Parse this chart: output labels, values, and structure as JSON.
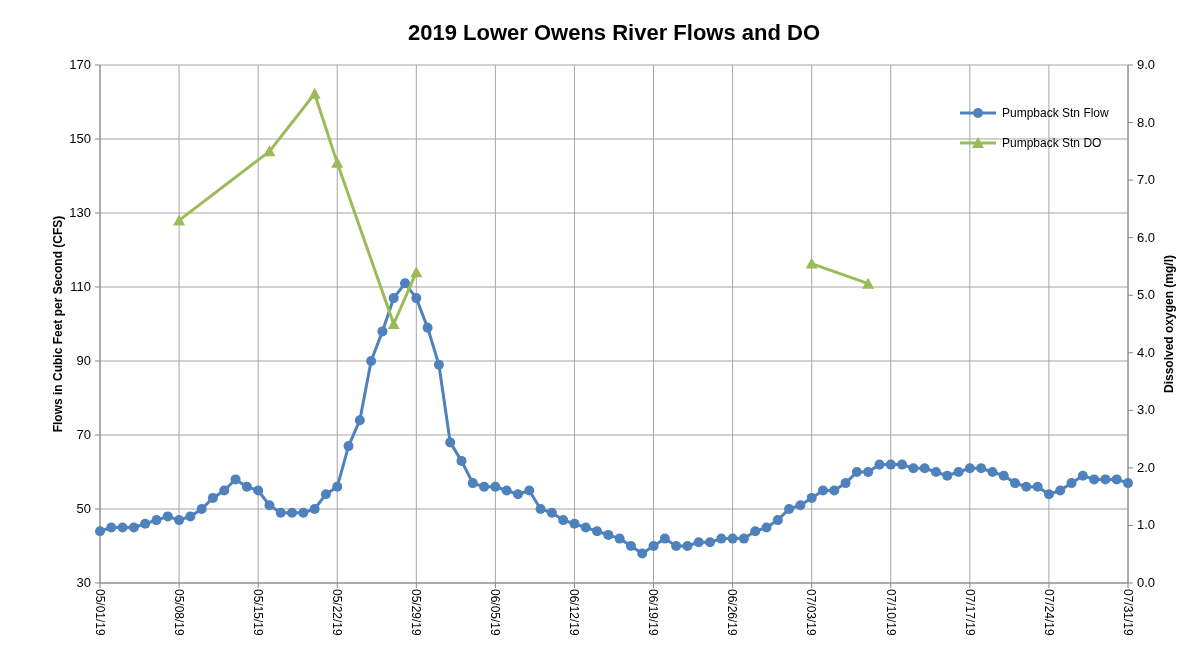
{
  "chart_data": {
    "type": "line",
    "title": "2019 Lower Owens River Flows and DO",
    "ylabel": "Flows in Cubic Feet per Second (CFS)",
    "y2label": "Dissolved oxygen (mg/l)",
    "xlim": [
      "2019-05-01",
      "2019-07-31"
    ],
    "xticks": [
      {
        "value": "2019-05-01",
        "label": "05/01/19"
      },
      {
        "value": "2019-05-08",
        "label": "05/08/19"
      },
      {
        "value": "2019-05-15",
        "label": "05/15/19"
      },
      {
        "value": "2019-05-22",
        "label": "05/22/19"
      },
      {
        "value": "2019-05-29",
        "label": "05/29/19"
      },
      {
        "value": "2019-06-05",
        "label": "06/05/19"
      },
      {
        "value": "2019-06-12",
        "label": "06/12/19"
      },
      {
        "value": "2019-06-19",
        "label": "06/19/19"
      },
      {
        "value": "2019-06-26",
        "label": "06/26/19"
      },
      {
        "value": "2019-07-03",
        "label": "07/03/19"
      },
      {
        "value": "2019-07-10",
        "label": "07/10/19"
      },
      {
        "value": "2019-07-17",
        "label": "07/17/19"
      },
      {
        "value": "2019-07-24",
        "label": "07/24/19"
      },
      {
        "value": "2019-07-31",
        "label": "07/31/19"
      }
    ],
    "ylim": [
      30,
      170
    ],
    "yticks": [
      30,
      50,
      70,
      90,
      110,
      130,
      150,
      170
    ],
    "y2lim": [
      0,
      9
    ],
    "y2ticks": [
      {
        "value": 0,
        "label": "0.0"
      },
      {
        "value": 1,
        "label": "1.0"
      },
      {
        "value": 2,
        "label": "2.0"
      },
      {
        "value": 3,
        "label": "3.0"
      },
      {
        "value": 4,
        "label": "4.0"
      },
      {
        "value": 5,
        "label": "5.0"
      },
      {
        "value": 6,
        "label": "6.0"
      },
      {
        "value": 7,
        "label": "7.0"
      },
      {
        "value": 8,
        "label": "8.0"
      },
      {
        "value": 9,
        "label": "9.0"
      }
    ],
    "grid": true,
    "legend": "top right",
    "line_style": "solid",
    "series": [
      {
        "name": "Pumpback Stn Flow",
        "color": "#4f81bd",
        "marker": "circle",
        "x": [
          "2019-05-01",
          "2019-05-02",
          "2019-05-03",
          "2019-05-04",
          "2019-05-05",
          "2019-05-06",
          "2019-05-07",
          "2019-05-08",
          "2019-05-09",
          "2019-05-10",
          "2019-05-11",
          "2019-05-12",
          "2019-05-13",
          "2019-05-14",
          "2019-05-15",
          "2019-05-16",
          "2019-05-17",
          "2019-05-18",
          "2019-05-19",
          "2019-05-20",
          "2019-05-21",
          "2019-05-22",
          "2019-05-23",
          "2019-05-24",
          "2019-05-25",
          "2019-05-26",
          "2019-05-27",
          "2019-05-28",
          "2019-05-29",
          "2019-05-30",
          "2019-05-31",
          "2019-06-01",
          "2019-06-02",
          "2019-06-03",
          "2019-06-04",
          "2019-06-05",
          "2019-06-06",
          "2019-06-07",
          "2019-06-08",
          "2019-06-09",
          "2019-06-10",
          "2019-06-11",
          "2019-06-12",
          "2019-06-13",
          "2019-06-14",
          "2019-06-15",
          "2019-06-16",
          "2019-06-17",
          "2019-06-18",
          "2019-06-19",
          "2019-06-20",
          "2019-06-21",
          "2019-06-22",
          "2019-06-23",
          "2019-06-24",
          "2019-06-25",
          "2019-06-26",
          "2019-06-27",
          "2019-06-28",
          "2019-06-29",
          "2019-06-30",
          "2019-07-01",
          "2019-07-02",
          "2019-07-03",
          "2019-07-04",
          "2019-07-05",
          "2019-07-06",
          "2019-07-07",
          "2019-07-08",
          "2019-07-09",
          "2019-07-10",
          "2019-07-11",
          "2019-07-12",
          "2019-07-13",
          "2019-07-14",
          "2019-07-15",
          "2019-07-16",
          "2019-07-17",
          "2019-07-18",
          "2019-07-19",
          "2019-07-20",
          "2019-07-21",
          "2019-07-22",
          "2019-07-23",
          "2019-07-24",
          "2019-07-25",
          "2019-07-26",
          "2019-07-27",
          "2019-07-28",
          "2019-07-29",
          "2019-07-30",
          "2019-07-31"
        ],
        "values": [
          44,
          45,
          45,
          45,
          46,
          47,
          48,
          47,
          48,
          50,
          53,
          55,
          58,
          56,
          55,
          51,
          49,
          49,
          49,
          50,
          54,
          56,
          67,
          74,
          90,
          98,
          107,
          111,
          107,
          99,
          89,
          68,
          63,
          57,
          56,
          56,
          55,
          54,
          55,
          50,
          49,
          47,
          46,
          45,
          44,
          43,
          42,
          40,
          38,
          40,
          42,
          40,
          40,
          41,
          41,
          42,
          42,
          42,
          44,
          45,
          47,
          50,
          51,
          53,
          55,
          55,
          57,
          60,
          60,
          62,
          62,
          62,
          61,
          61,
          60,
          59,
          60,
          61,
          61,
          60,
          59,
          57,
          56,
          56,
          54,
          55,
          57,
          59,
          58,
          58,
          58,
          57
        ]
      },
      {
        "name": "Pumpback Stn DO",
        "color": "#9bbb59",
        "marker": "triangle",
        "axis": "y2",
        "x": [
          "2019-05-08",
          "2019-05-16",
          "2019-05-20",
          "2019-05-22",
          "2019-05-27",
          "2019-05-29",
          "2019-06-15",
          "2019-07-03",
          "2019-07-08"
        ],
        "values": [
          6.3,
          7.5,
          8.5,
          7.3,
          4.5,
          5.4,
          null,
          5.55,
          5.2
        ]
      }
    ]
  }
}
